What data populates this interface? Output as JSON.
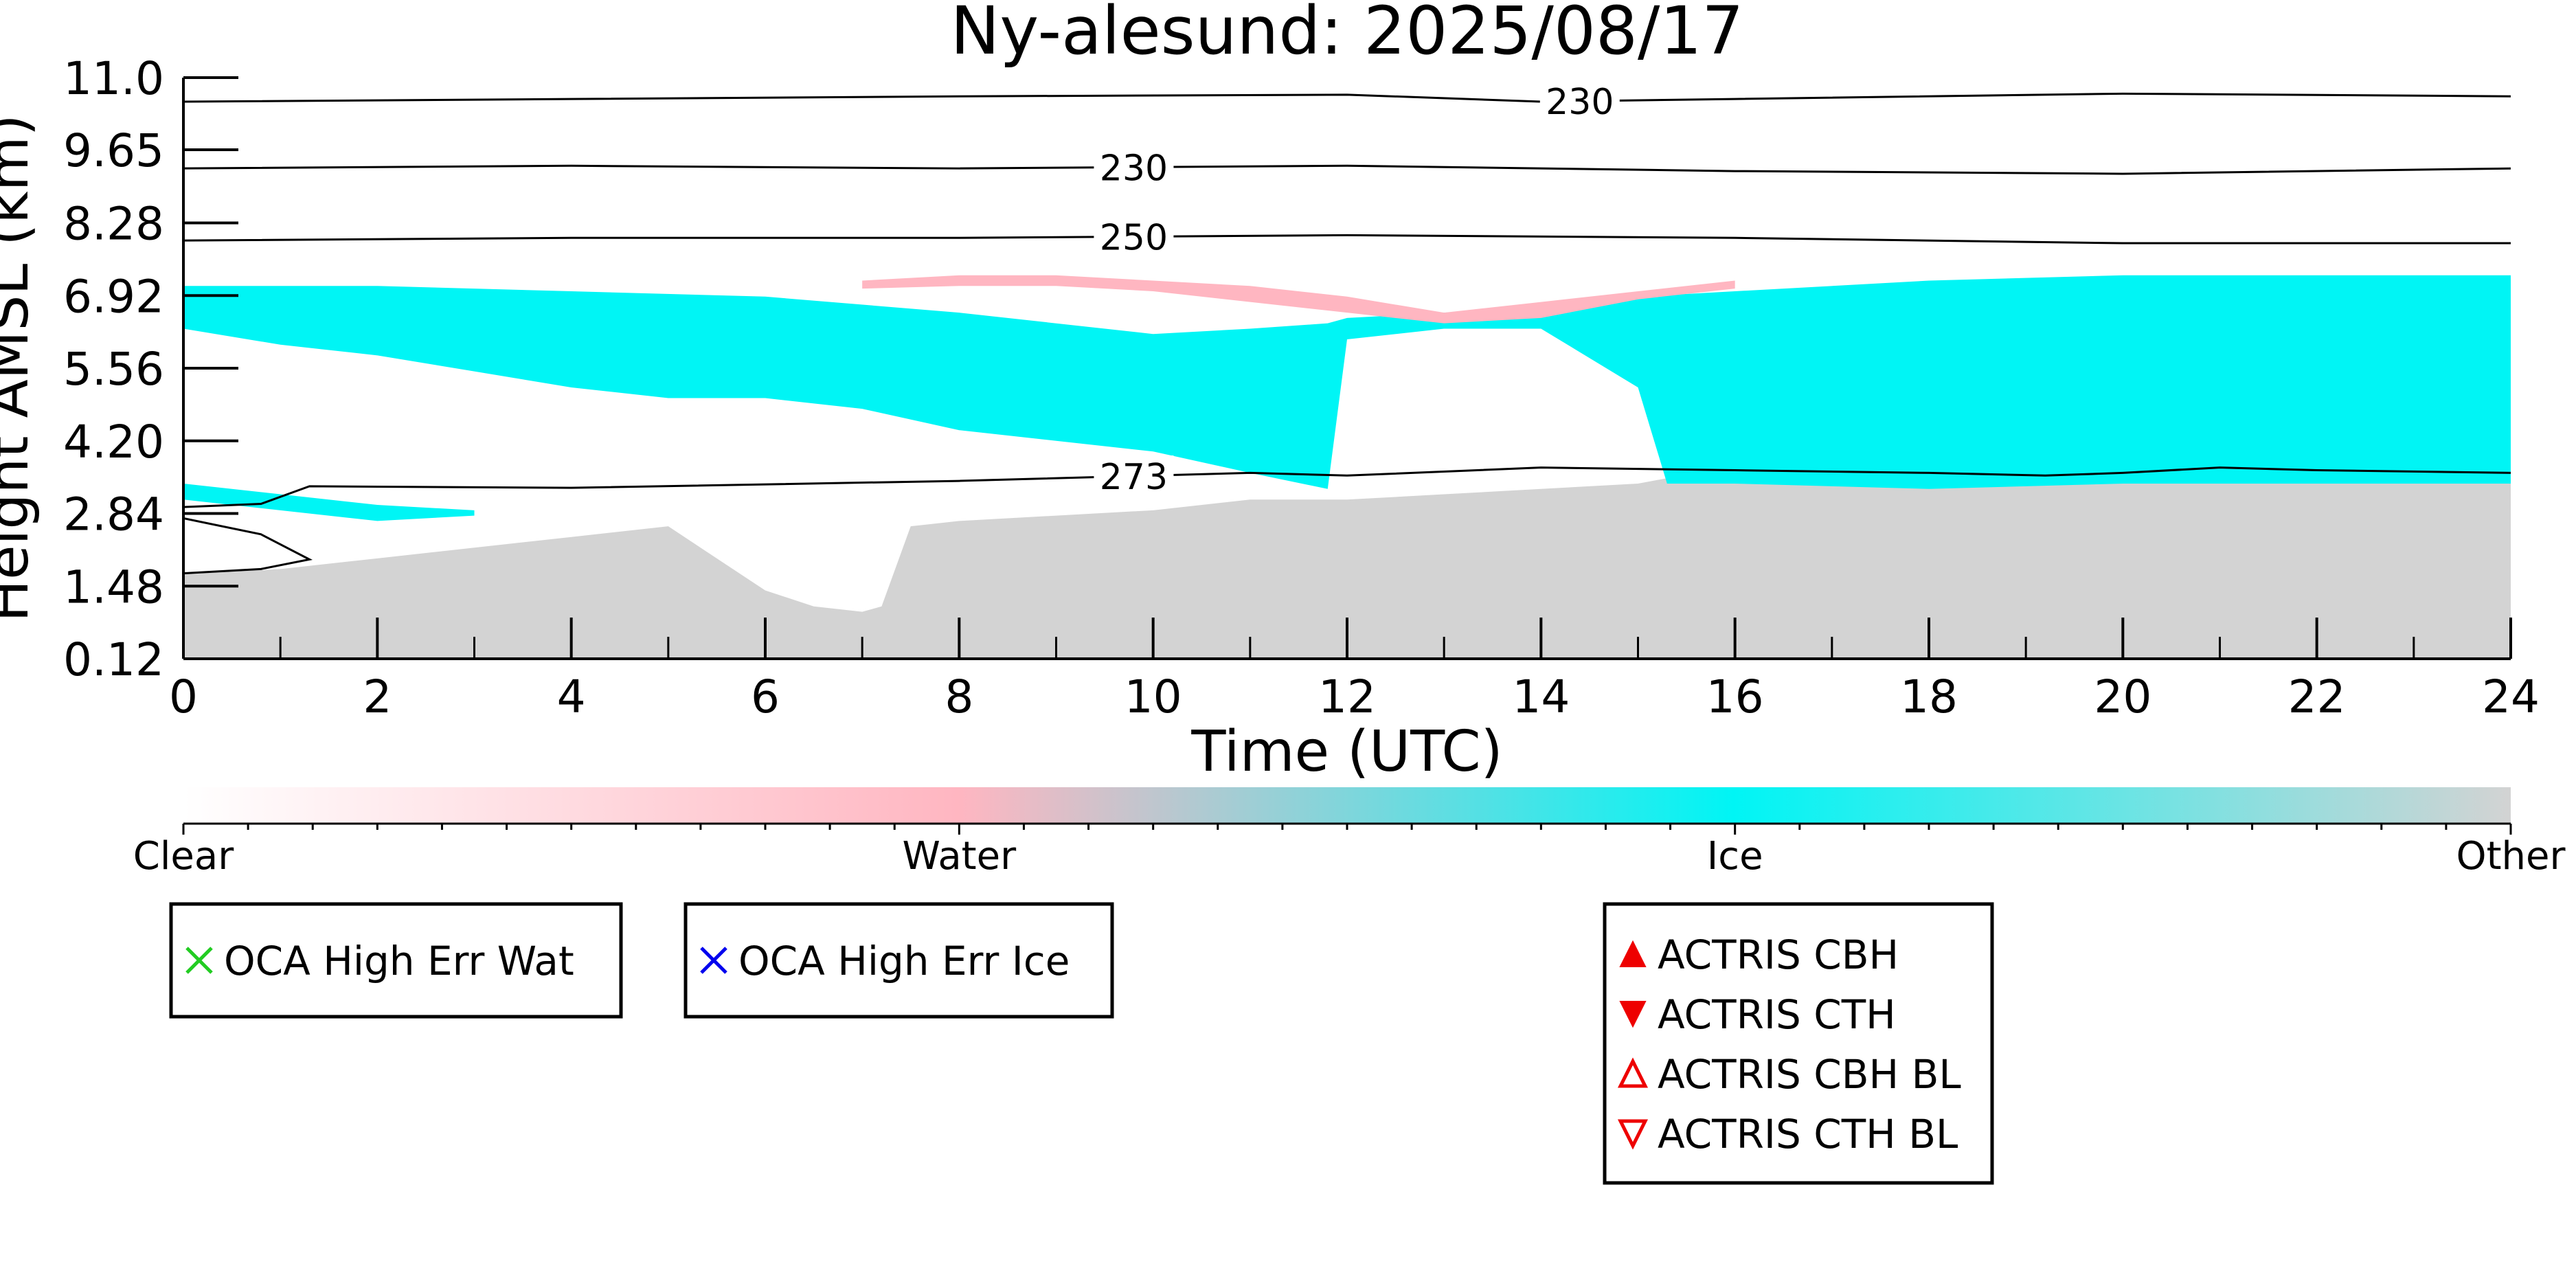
{
  "chart_data": {
    "type": "heatmap",
    "title": "Ny-alesund: 2025/08/17",
    "xlabel": "Time (UTC)",
    "ylabel": "Height AMSL (km)",
    "xlim": [
      0,
      24
    ],
    "ylim": [
      0.12,
      11.0
    ],
    "x_ticks": [
      "0",
      "2",
      "4",
      "6",
      "8",
      "10",
      "12",
      "14",
      "16",
      "18",
      "20",
      "22",
      "24"
    ],
    "y_ticks": [
      "0.12",
      "1.48",
      "2.84",
      "4.20",
      "5.56",
      "6.92",
      "8.28",
      "9.65",
      "11.0"
    ],
    "classes": [
      {
        "name": "Clear",
        "color": "#ffffff"
      },
      {
        "name": "Water",
        "color": "#ffb6c1"
      },
      {
        "name": "Ice",
        "color": "#00f5f5"
      },
      {
        "name": "Other",
        "color": "#d3d3d3"
      }
    ],
    "colorbar_labels": [
      "Clear",
      "Water",
      "Ice",
      "Other"
    ],
    "regions": [
      {
        "class": "Other",
        "base": [
          [
            0,
            0.12
          ],
          [
            2,
            0.12
          ],
          [
            4,
            0.12
          ],
          [
            6,
            0.12
          ],
          [
            8,
            0.12
          ],
          [
            10,
            0.12
          ],
          [
            12,
            0.12
          ],
          [
            14,
            0.12
          ],
          [
            16,
            0.12
          ],
          [
            18,
            0.12
          ],
          [
            20,
            0.12
          ],
          [
            22,
            0.12
          ],
          [
            24,
            0.12
          ]
        ],
        "top": [
          [
            0,
            1.7
          ],
          [
            1,
            1.8
          ],
          [
            2,
            2.0
          ],
          [
            3,
            2.2
          ],
          [
            4,
            2.4
          ],
          [
            5,
            2.6
          ],
          [
            6,
            1.4
          ],
          [
            6.5,
            1.1
          ],
          [
            7,
            1.0
          ],
          [
            7.2,
            1.1
          ],
          [
            7.5,
            2.6
          ],
          [
            8,
            2.7
          ],
          [
            9,
            2.8
          ],
          [
            10,
            2.9
          ],
          [
            11,
            3.1
          ],
          [
            12,
            3.1
          ],
          [
            13,
            3.2
          ],
          [
            14,
            3.3
          ],
          [
            15,
            3.4
          ],
          [
            15.3,
            3.5
          ],
          [
            16,
            3.55
          ],
          [
            18,
            3.6
          ],
          [
            20,
            3.5
          ],
          [
            22,
            3.5
          ],
          [
            24,
            3.5
          ]
        ]
      },
      {
        "class": "Ice",
        "base": [
          [
            0,
            7.1
          ],
          [
            2,
            7.1
          ],
          [
            4,
            7.0
          ],
          [
            6,
            6.9
          ],
          [
            8,
            6.6
          ],
          [
            10,
            6.2
          ],
          [
            11,
            6.3
          ],
          [
            11.8,
            6.4
          ],
          [
            12,
            6.5
          ],
          [
            13,
            6.6
          ],
          [
            14,
            6.7
          ],
          [
            15,
            6.9
          ],
          [
            16,
            7.0
          ],
          [
            18,
            7.2
          ],
          [
            20,
            7.3
          ],
          [
            22,
            7.3
          ],
          [
            24,
            7.3
          ]
        ],
        "top": [
          [
            0,
            6.3
          ],
          [
            1,
            6.0
          ],
          [
            2,
            5.8
          ],
          [
            3,
            5.5
          ],
          [
            4,
            5.2
          ],
          [
            5,
            5.0
          ],
          [
            6,
            5.0
          ],
          [
            7,
            4.8
          ],
          [
            8,
            4.4
          ],
          [
            9,
            4.2
          ],
          [
            10,
            4.0
          ],
          [
            11,
            3.6
          ],
          [
            11.8,
            3.3
          ],
          [
            12,
            6.1
          ],
          [
            13,
            6.3
          ],
          [
            14,
            6.3
          ],
          [
            15,
            5.2
          ],
          [
            15.3,
            3.4
          ],
          [
            16,
            3.4
          ],
          [
            18,
            3.3
          ],
          [
            20,
            3.4
          ],
          [
            22,
            3.4
          ],
          [
            24,
            3.4
          ]
        ]
      },
      {
        "class": "Ice",
        "note": "low layer",
        "base": [
          [
            0,
            3.4
          ],
          [
            1,
            3.2
          ],
          [
            2,
            3.0
          ],
          [
            3,
            2.9
          ]
        ],
        "top": [
          [
            0,
            3.1
          ],
          [
            1,
            2.9
          ],
          [
            2,
            2.7
          ],
          [
            3,
            2.8
          ]
        ]
      },
      {
        "class": "Water",
        "base": [
          [
            7,
            7.2
          ],
          [
            8,
            7.3
          ],
          [
            9,
            7.3
          ],
          [
            10,
            7.2
          ],
          [
            11,
            7.1
          ],
          [
            12,
            6.9
          ],
          [
            13,
            6.6
          ],
          [
            14,
            6.8
          ],
          [
            15,
            7.0
          ],
          [
            16,
            7.2
          ]
        ],
        "top": [
          [
            7,
            7.05
          ],
          [
            8,
            7.1
          ],
          [
            9,
            7.1
          ],
          [
            10,
            7.0
          ],
          [
            11,
            6.8
          ],
          [
            12,
            6.6
          ],
          [
            13,
            6.4
          ],
          [
            14,
            6.5
          ],
          [
            15,
            6.85
          ],
          [
            16,
            7.05
          ]
        ]
      }
    ],
    "temperature_contours": [
      {
        "label": "230",
        "label_x": 14.4,
        "points": [
          [
            0,
            10.55
          ],
          [
            4,
            10.6
          ],
          [
            8,
            10.65
          ],
          [
            12,
            10.68
          ],
          [
            14,
            10.55
          ],
          [
            16,
            10.6
          ],
          [
            20,
            10.7
          ],
          [
            24,
            10.65
          ]
        ]
      },
      {
        "label": "230",
        "label_x": 9.8,
        "points": [
          [
            0,
            9.3
          ],
          [
            4,
            9.35
          ],
          [
            8,
            9.3
          ],
          [
            12,
            9.35
          ],
          [
            16,
            9.25
          ],
          [
            20,
            9.2
          ],
          [
            24,
            9.3
          ]
        ]
      },
      {
        "label": "250",
        "label_x": 9.8,
        "points": [
          [
            0,
            7.95
          ],
          [
            4,
            8.0
          ],
          [
            8,
            8.0
          ],
          [
            12,
            8.05
          ],
          [
            16,
            8.0
          ],
          [
            20,
            7.9
          ],
          [
            24,
            7.9
          ]
        ]
      },
      {
        "label": "273",
        "label_x": 9.8,
        "points": [
          [
            0,
            2.96
          ],
          [
            0.8,
            3.02
          ],
          [
            1.3,
            3.35
          ],
          [
            4,
            3.32
          ],
          [
            8,
            3.45
          ],
          [
            11,
            3.6
          ],
          [
            12,
            3.55
          ],
          [
            14,
            3.7
          ],
          [
            16,
            3.65
          ],
          [
            18,
            3.6
          ],
          [
            19.2,
            3.55
          ],
          [
            20,
            3.6
          ],
          [
            21,
            3.7
          ],
          [
            22,
            3.65
          ],
          [
            24,
            3.6
          ]
        ]
      },
      {
        "label": "",
        "label_x": null,
        "points": [
          [
            0,
            2.75
          ],
          [
            0.8,
            2.45
          ],
          [
            1.3,
            1.98
          ],
          [
            0.8,
            1.8
          ],
          [
            0,
            1.72
          ]
        ]
      }
    ],
    "legends": [
      {
        "entries": [
          {
            "label": "OCA High Err Wat",
            "marker": "x",
            "color": "#22cc22"
          }
        ]
      },
      {
        "entries": [
          {
            "label": "OCA High Err Ice",
            "marker": "x",
            "color": "#0000ee"
          }
        ]
      },
      {
        "entries": [
          {
            "label": "ACTRIS CBH",
            "marker": "triangle-up-filled",
            "color": "#ee0000"
          },
          {
            "label": "ACTRIS CTH",
            "marker": "triangle-down-filled",
            "color": "#ee0000"
          },
          {
            "label": "ACTRIS CBH BL",
            "marker": "triangle-up-open",
            "color": "#ee0000"
          },
          {
            "label": "ACTRIS CTH BL",
            "marker": "triangle-down-open",
            "color": "#ee0000"
          }
        ]
      }
    ]
  }
}
